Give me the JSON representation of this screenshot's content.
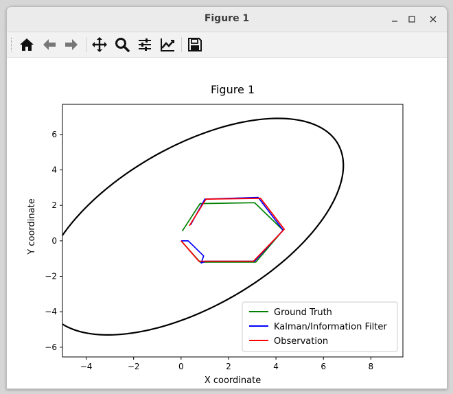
{
  "window": {
    "title": "Figure 1",
    "controls": [
      "minimize",
      "maximize",
      "close"
    ]
  },
  "toolbar": {
    "tools": [
      {
        "name": "home-icon"
      },
      {
        "name": "back-arrow-icon"
      },
      {
        "name": "forward-arrow-icon"
      },
      {
        "name": "pan-icon"
      },
      {
        "name": "zoom-icon"
      },
      {
        "name": "configure-subplots-icon"
      },
      {
        "name": "edit-axis-icon"
      },
      {
        "name": "save-icon"
      }
    ]
  },
  "chart_data": {
    "type": "line",
    "title": "Figure 1",
    "xlabel": "X coordinate",
    "ylabel": "Y coordinate",
    "xlim": [
      -5.0,
      9.35
    ],
    "ylim": [
      -6.55,
      7.7
    ],
    "xticks": [
      -4,
      -2,
      0,
      2,
      4,
      6,
      8
    ],
    "yticks": [
      -6,
      -4,
      -2,
      0,
      2,
      4,
      6
    ],
    "grid": false,
    "legend": "lower-right",
    "series": [
      {
        "name": "Ground Truth",
        "color": "#008000",
        "x": [
          0.05,
          0.8,
          3.1,
          4.3,
          3.15,
          0.8,
          0.0
        ],
        "y": [
          0.55,
          2.1,
          2.15,
          0.6,
          -1.2,
          -1.2,
          0.0
        ]
      },
      {
        "name": "Kalman/Information Filter",
        "color": "#0000ff",
        "x": [
          0.0,
          0.3,
          0.95,
          0.85,
          1.05,
          3.1,
          4.3,
          3.25,
          1.0,
          0.4
        ],
        "y": [
          0.0,
          0.0,
          -0.85,
          -1.25,
          -1.15,
          -1.15,
          0.6,
          2.45,
          2.35,
          0.9
        ]
      },
      {
        "name": "Observation",
        "color": "#ff0000",
        "x": [
          0.0,
          0.75,
          3.05,
          4.35,
          3.35,
          1.05,
          0.35
        ],
        "y": [
          0.0,
          -1.15,
          -1.15,
          0.65,
          2.4,
          2.35,
          0.85
        ]
      }
    ],
    "ellipse": {
      "color": "#000000",
      "center": [
        0.5,
        0.8
      ],
      "semi_major": 7.79,
      "semi_minor": 4.1,
      "angle_deg": 43.1
    }
  }
}
